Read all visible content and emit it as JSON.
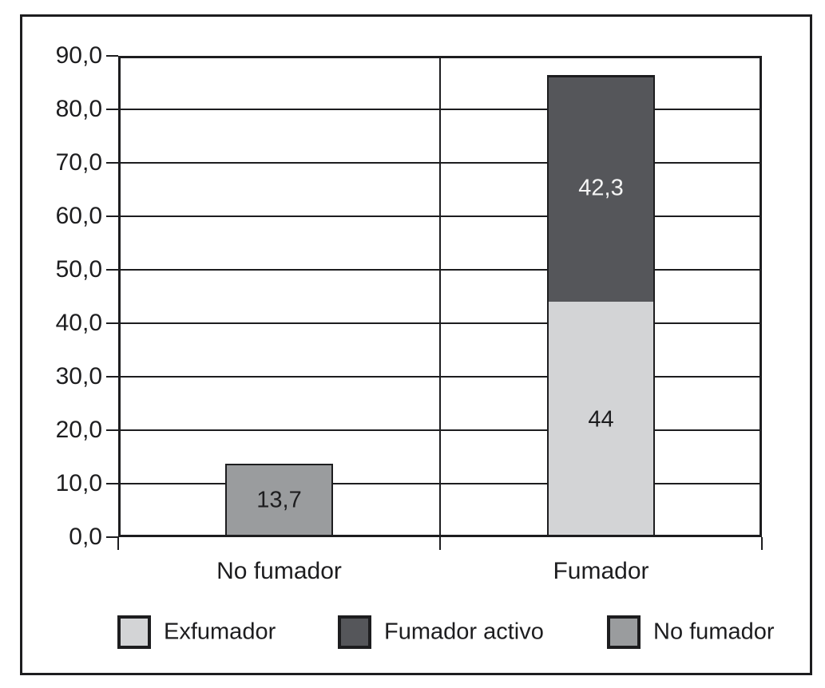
{
  "chart_data": {
    "type": "bar",
    "stacked": true,
    "title": "",
    "xlabel": "",
    "ylabel": "",
    "categories": [
      "No fumador",
      "Fumador"
    ],
    "series": [
      {
        "name": "Exfumador",
        "color": "#d3d4d6",
        "label_color": "#1d1d1f",
        "values": [
          0,
          44
        ],
        "value_labels": [
          "",
          "44"
        ]
      },
      {
        "name": "Fumador activo",
        "color": "#55565a",
        "label_color": "#f5f5f5",
        "values": [
          0,
          42.3
        ],
        "value_labels": [
          "",
          "42,3"
        ]
      },
      {
        "name": "No fumador",
        "color": "#9a9c9e",
        "label_color": "#1d1d1f",
        "values": [
          13.7,
          0
        ],
        "value_labels": [
          "13,7",
          ""
        ]
      }
    ],
    "ylim": [
      0,
      90
    ],
    "ytick_step": 10,
    "ytick_labels": [
      "0,0",
      "10,0",
      "20,0",
      "30,0",
      "40,0",
      "50,0",
      "60,0",
      "70,0",
      "80,0",
      "90,0"
    ],
    "grid": true,
    "legend_position": "bottom"
  },
  "legend": {
    "items": [
      {
        "label": "Exfumador",
        "color": "#d3d4d6"
      },
      {
        "label": "Fumador activo",
        "color": "#55565a"
      },
      {
        "label": "No fumador",
        "color": "#9a9c9e"
      }
    ]
  },
  "colors": {
    "line": "#1d1d1f",
    "background": "#ffffff"
  }
}
